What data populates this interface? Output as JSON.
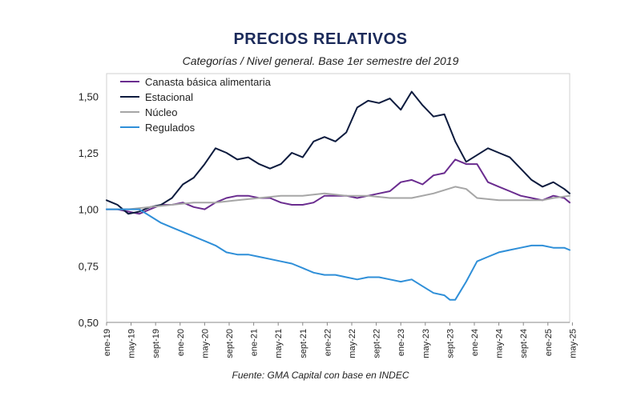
{
  "chart_data": {
    "type": "line",
    "title": "PRECIOS RELATIVOS",
    "subtitle": "Categorías / Nivel general. Base 1er semestre del 2019",
    "source": "Fuente: GMA Capital con base en INDEC",
    "xlabel": "",
    "ylabel": "",
    "ylim": [
      0.5,
      1.6
    ],
    "y_ticks": [
      "0,50",
      "0,75",
      "1,00",
      "1,25",
      "1,50"
    ],
    "y_tick_values": [
      0.5,
      0.75,
      1.0,
      1.25,
      1.5
    ],
    "x_ticks": [
      "ene-19",
      "may-19",
      "sept-19",
      "ene-20",
      "may-20",
      "sept-20",
      "ene-21",
      "may-21",
      "sept-21",
      "ene-22",
      "may-22",
      "sept-22",
      "ene-23",
      "may-23",
      "sept-23",
      "ene-24",
      "may-24",
      "sept-24",
      "ene-25",
      "may-25"
    ],
    "grid": false,
    "legend_position": "top-left",
    "series": [
      {
        "name": "Canasta básica alimentaria",
        "color": "#6a2c8f",
        "points": [
          [
            0,
            1.0
          ],
          [
            2,
            1.0
          ],
          [
            4,
            0.99
          ],
          [
            6,
            0.98
          ],
          [
            8,
            1.0
          ],
          [
            10,
            1.02
          ],
          [
            12,
            1.02
          ],
          [
            14,
            1.03
          ],
          [
            16,
            1.01
          ],
          [
            18,
            1.0
          ],
          [
            20,
            1.03
          ],
          [
            22,
            1.05
          ],
          [
            24,
            1.06
          ],
          [
            26,
            1.06
          ],
          [
            28,
            1.05
          ],
          [
            30,
            1.05
          ],
          [
            32,
            1.03
          ],
          [
            34,
            1.02
          ],
          [
            36,
            1.02
          ],
          [
            38,
            1.03
          ],
          [
            40,
            1.06
          ],
          [
            42,
            1.06
          ],
          [
            44,
            1.06
          ],
          [
            46,
            1.05
          ],
          [
            48,
            1.06
          ],
          [
            50,
            1.07
          ],
          [
            52,
            1.08
          ],
          [
            54,
            1.12
          ],
          [
            56,
            1.13
          ],
          [
            58,
            1.11
          ],
          [
            60,
            1.15
          ],
          [
            62,
            1.16
          ],
          [
            64,
            1.22
          ],
          [
            66,
            1.2
          ],
          [
            68,
            1.2
          ],
          [
            70,
            1.12
          ],
          [
            72,
            1.1
          ],
          [
            74,
            1.08
          ],
          [
            76,
            1.06
          ],
          [
            78,
            1.05
          ],
          [
            80,
            1.04
          ],
          [
            82,
            1.06
          ],
          [
            84,
            1.05
          ],
          [
            85,
            1.03
          ]
        ]
      },
      {
        "name": "Estacional",
        "color": "#0d1b3e",
        "points": [
          [
            0,
            1.04
          ],
          [
            2,
            1.02
          ],
          [
            4,
            0.98
          ],
          [
            6,
            0.99
          ],
          [
            8,
            1.01
          ],
          [
            10,
            1.02
          ],
          [
            12,
            1.05
          ],
          [
            14,
            1.11
          ],
          [
            16,
            1.14
          ],
          [
            18,
            1.2
          ],
          [
            20,
            1.27
          ],
          [
            22,
            1.25
          ],
          [
            24,
            1.22
          ],
          [
            26,
            1.23
          ],
          [
            28,
            1.2
          ],
          [
            30,
            1.18
          ],
          [
            32,
            1.2
          ],
          [
            34,
            1.25
          ],
          [
            36,
            1.23
          ],
          [
            38,
            1.3
          ],
          [
            40,
            1.32
          ],
          [
            42,
            1.3
          ],
          [
            44,
            1.34
          ],
          [
            46,
            1.45
          ],
          [
            48,
            1.48
          ],
          [
            50,
            1.47
          ],
          [
            52,
            1.49
          ],
          [
            54,
            1.44
          ],
          [
            56,
            1.52
          ],
          [
            58,
            1.46
          ],
          [
            60,
            1.41
          ],
          [
            62,
            1.42
          ],
          [
            64,
            1.3
          ],
          [
            66,
            1.21
          ],
          [
            68,
            1.24
          ],
          [
            70,
            1.27
          ],
          [
            72,
            1.25
          ],
          [
            74,
            1.23
          ],
          [
            76,
            1.18
          ],
          [
            78,
            1.13
          ],
          [
            80,
            1.1
          ],
          [
            82,
            1.12
          ],
          [
            84,
            1.09
          ],
          [
            85,
            1.07
          ]
        ]
      },
      {
        "name": "Núcleo",
        "color": "#a6a6a6",
        "points": [
          [
            0,
            1.0
          ],
          [
            4,
            1.0
          ],
          [
            8,
            1.01
          ],
          [
            12,
            1.02
          ],
          [
            16,
            1.03
          ],
          [
            20,
            1.03
          ],
          [
            24,
            1.04
          ],
          [
            28,
            1.05
          ],
          [
            32,
            1.06
          ],
          [
            36,
            1.06
          ],
          [
            40,
            1.07
          ],
          [
            44,
            1.06
          ],
          [
            48,
            1.06
          ],
          [
            52,
            1.05
          ],
          [
            56,
            1.05
          ],
          [
            60,
            1.07
          ],
          [
            64,
            1.1
          ],
          [
            66,
            1.09
          ],
          [
            68,
            1.05
          ],
          [
            72,
            1.04
          ],
          [
            76,
            1.04
          ],
          [
            80,
            1.04
          ],
          [
            82,
            1.05
          ],
          [
            85,
            1.06
          ]
        ]
      },
      {
        "name": "Regulados",
        "color": "#2f8fd8",
        "points": [
          [
            0,
            1.0
          ],
          [
            4,
            1.0
          ],
          [
            6,
            1.0
          ],
          [
            8,
            0.97
          ],
          [
            10,
            0.94
          ],
          [
            12,
            0.92
          ],
          [
            14,
            0.9
          ],
          [
            16,
            0.88
          ],
          [
            18,
            0.86
          ],
          [
            20,
            0.84
          ],
          [
            22,
            0.81
          ],
          [
            24,
            0.8
          ],
          [
            26,
            0.8
          ],
          [
            28,
            0.79
          ],
          [
            30,
            0.78
          ],
          [
            32,
            0.77
          ],
          [
            34,
            0.76
          ],
          [
            36,
            0.74
          ],
          [
            38,
            0.72
          ],
          [
            40,
            0.71
          ],
          [
            42,
            0.71
          ],
          [
            44,
            0.7
          ],
          [
            46,
            0.69
          ],
          [
            48,
            0.7
          ],
          [
            50,
            0.7
          ],
          [
            52,
            0.69
          ],
          [
            54,
            0.68
          ],
          [
            56,
            0.69
          ],
          [
            58,
            0.66
          ],
          [
            60,
            0.63
          ],
          [
            62,
            0.62
          ],
          [
            63,
            0.6
          ],
          [
            64,
            0.6
          ],
          [
            66,
            0.68
          ],
          [
            68,
            0.77
          ],
          [
            70,
            0.79
          ],
          [
            72,
            0.81
          ],
          [
            74,
            0.82
          ],
          [
            76,
            0.83
          ],
          [
            78,
            0.84
          ],
          [
            80,
            0.84
          ],
          [
            82,
            0.83
          ],
          [
            84,
            0.83
          ],
          [
            85,
            0.82
          ]
        ]
      }
    ]
  }
}
